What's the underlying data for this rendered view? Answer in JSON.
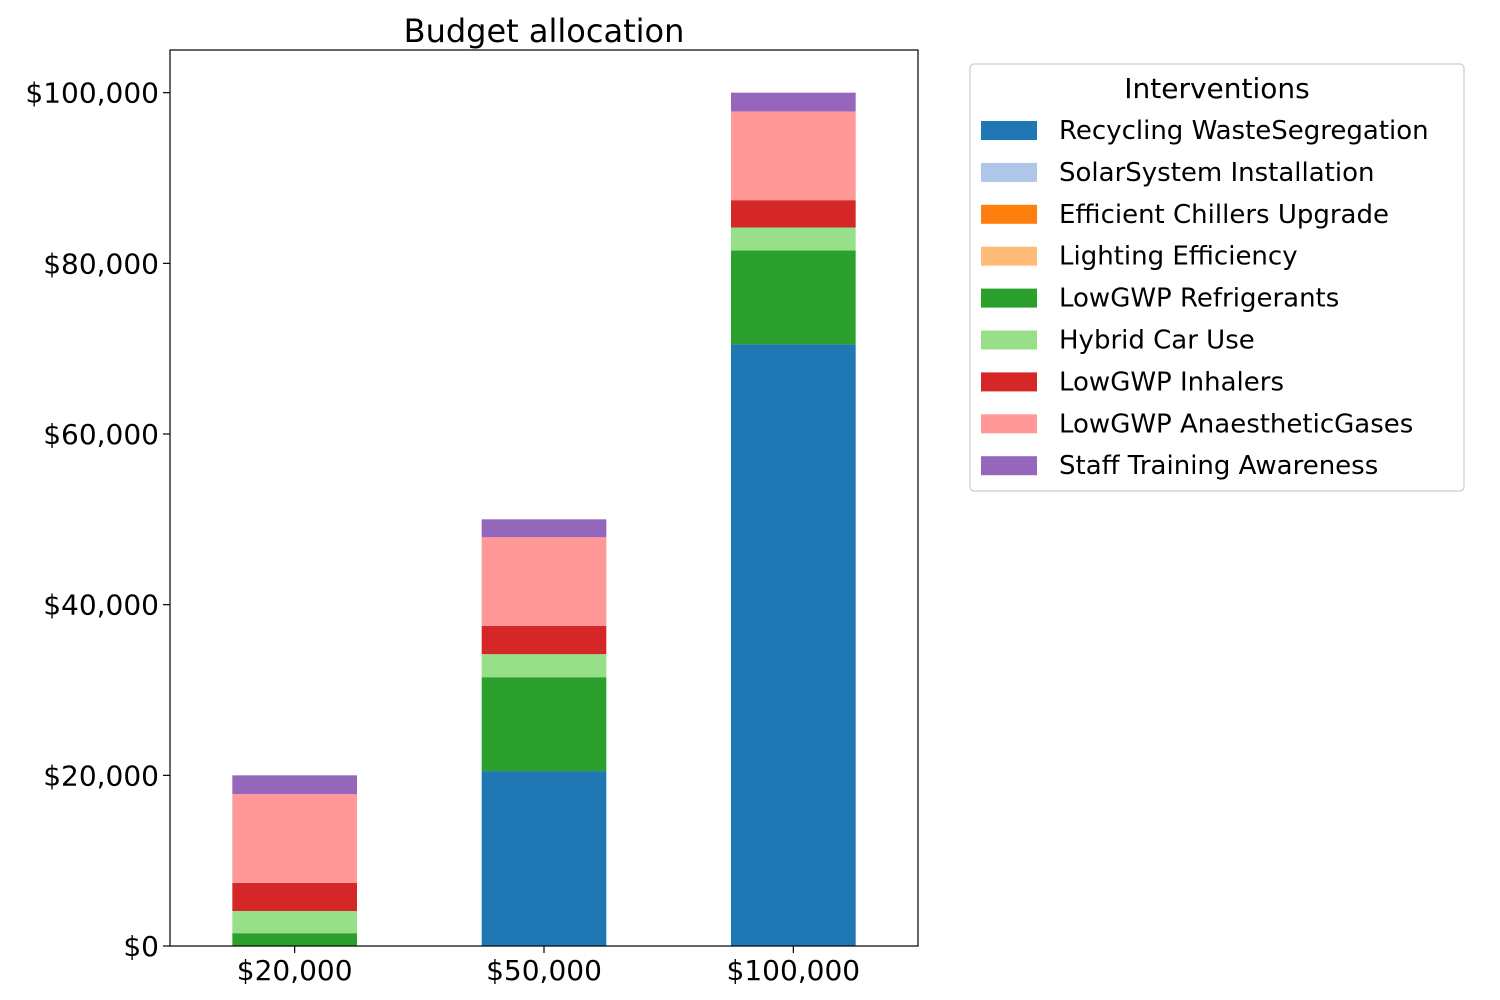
{
  "chart_data": {
    "type": "bar",
    "stacked": true,
    "title": "Budget allocation",
    "xlabel": "",
    "ylabel": "",
    "categories": [
      "$20,000",
      "$50,000",
      "$100,000"
    ],
    "ylim": [
      0,
      105000
    ],
    "yticks": [
      0,
      20000,
      40000,
      60000,
      80000,
      100000
    ],
    "ytick_labels": [
      "$0",
      "$20,000",
      "$40,000",
      "$60,000",
      "$80,000",
      "$100,000"
    ],
    "grid": false,
    "legend_title": "Interventions",
    "legend_position": "outside-top-right",
    "series": [
      {
        "name": "Recycling WasteSegregation",
        "color": "#1f77b4",
        "values": [
          0,
          20500,
          70500
        ]
      },
      {
        "name": "SolarSystem Installation",
        "color": "#aec7e8",
        "values": [
          0,
          0,
          0
        ]
      },
      {
        "name": "Efficient Chillers Upgrade",
        "color": "#ff7f0e",
        "values": [
          0,
          0,
          0
        ]
      },
      {
        "name": "Lighting Efficiency",
        "color": "#ffbb78",
        "values": [
          0,
          0,
          0
        ]
      },
      {
        "name": "LowGWP Refrigerants",
        "color": "#2ca02c",
        "values": [
          1500,
          11000,
          11000
        ]
      },
      {
        "name": "Hybrid Car Use",
        "color": "#98df8a",
        "values": [
          2600,
          2700,
          2700
        ]
      },
      {
        "name": "LowGWP Inhalers",
        "color": "#d62728",
        "values": [
          3300,
          3300,
          3200
        ]
      },
      {
        "name": "LowGWP AnaestheticGases",
        "color": "#ff9896",
        "values": [
          10400,
          10400,
          10400
        ]
      },
      {
        "name": "Staff Training Awareness",
        "color": "#9467bd",
        "values": [
          2200,
          2100,
          2200
        ]
      }
    ]
  }
}
